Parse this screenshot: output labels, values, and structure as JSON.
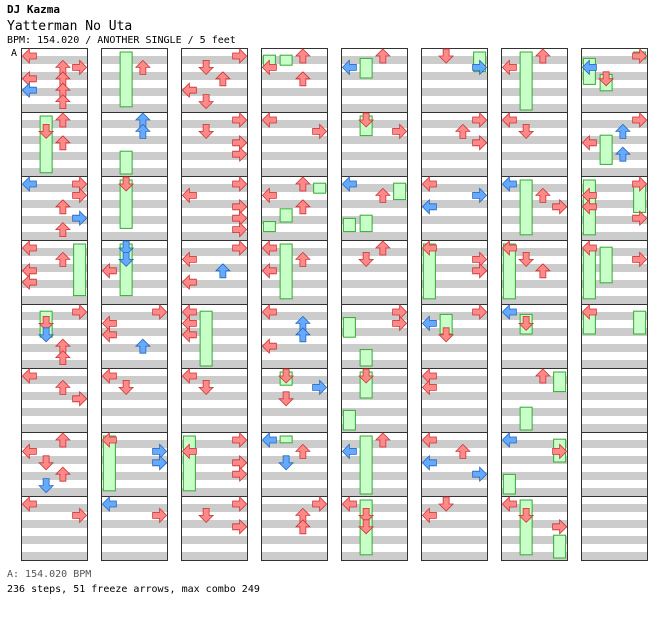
{
  "header": {
    "artist": "DJ Kazma",
    "title": "Yatterman No Uta",
    "meta": "BPM: 154.020 / ANOTHER SINGLE / 5 feet",
    "section_marker": "A"
  },
  "footer": {
    "bpm": "A: 154.020 BPM",
    "stats": "236 steps, 51 freeze arrows, max combo 249"
  },
  "colors": {
    "red_arrow": "#ff8888",
    "blue_arrow": "#66aaff",
    "freeze": "#c8ffc8",
    "freeze_border": "#33aa33",
    "stripe": "#cccccc"
  },
  "chart": {
    "columns": 8,
    "measures_per_column": 8,
    "lanes": [
      "left",
      "down",
      "up",
      "right"
    ],
    "measures": [
      [
        [
          0,
          "L",
          "r"
        ],
        [
          3,
          "R",
          "r"
        ],
        [
          6,
          "L",
          "r"
        ],
        [
          9,
          "L",
          "b"
        ],
        [
          3,
          "U",
          "r"
        ],
        [
          6,
          "U",
          "r"
        ],
        [
          9,
          "U",
          "r"
        ],
        [
          12,
          "U",
          "r"
        ]
      ],
      [
        [
          0,
          "U",
          "r"
        ],
        [
          3,
          "D",
          "r"
        ],
        [
          6,
          "U",
          "r"
        ]
      ],
      [
        [
          0,
          "L",
          "b"
        ],
        [
          0,
          "R",
          "r"
        ],
        [
          3,
          "R",
          "r"
        ],
        [
          6,
          "U",
          "r"
        ],
        [
          9,
          "R",
          "b"
        ],
        [
          12,
          "U",
          "r"
        ]
      ],
      [
        [
          0,
          "L",
          "r"
        ],
        [
          3,
          "U",
          "r"
        ],
        [
          6,
          "L",
          "r"
        ],
        [
          9,
          "L",
          "r"
        ]
      ],
      [
        [
          0,
          "R",
          "r"
        ],
        [
          3,
          "D",
          "r"
        ],
        [
          6,
          "D",
          "b"
        ],
        [
          9,
          "U",
          "r"
        ],
        [
          12,
          "U",
          "r"
        ]
      ],
      [
        [
          0,
          "L",
          "r"
        ],
        [
          3,
          "U",
          "r"
        ],
        [
          6,
          "R",
          "r"
        ]
      ],
      [
        [
          0,
          "U",
          "r"
        ],
        [
          3,
          "L",
          "r"
        ],
        [
          6,
          "D",
          "r"
        ],
        [
          9,
          "U",
          "r"
        ],
        [
          12,
          "D",
          "b"
        ]
      ],
      [
        [
          0,
          "L",
          "r"
        ],
        [
          3,
          "R",
          "r"
        ]
      ],
      [
        [
          3,
          "U",
          "r"
        ]
      ],
      [
        [
          0,
          "U",
          "b"
        ],
        [
          3,
          "U",
          "b"
        ]
      ],
      [
        [
          0,
          "D",
          "r"
        ]
      ],
      [
        [
          0,
          "D",
          "b"
        ],
        [
          3,
          "D",
          "b"
        ],
        [
          6,
          "L",
          "r"
        ]
      ],
      [
        [
          0,
          "R",
          "r"
        ],
        [
          3,
          "L",
          "r"
        ],
        [
          6,
          "L",
          "r"
        ],
        [
          9,
          "U",
          "b"
        ]
      ],
      [
        [
          0,
          "L",
          "r"
        ],
        [
          3,
          "D",
          "r"
        ]
      ],
      [
        [
          0,
          "L",
          "r"
        ],
        [
          3,
          "R",
          "b"
        ],
        [
          6,
          "R",
          "b"
        ]
      ],
      [
        [
          0,
          "L",
          "b"
        ],
        [
          3,
          "R",
          "r"
        ]
      ],
      [
        [
          0,
          "R",
          "r"
        ],
        [
          3,
          "D",
          "r"
        ],
        [
          6,
          "U",
          "r"
        ],
        [
          9,
          "L",
          "r"
        ],
        [
          12,
          "D",
          "r"
        ]
      ],
      [
        [
          0,
          "R",
          "r"
        ],
        [
          3,
          "D",
          "r"
        ],
        [
          6,
          "R",
          "r"
        ],
        [
          9,
          "R",
          "r"
        ]
      ],
      [
        [
          0,
          "R",
          "r"
        ],
        [
          3,
          "L",
          "r"
        ],
        [
          6,
          "R",
          "r"
        ],
        [
          9,
          "R",
          "r"
        ],
        [
          12,
          "R",
          "r"
        ]
      ],
      [
        [
          0,
          "R",
          "r"
        ],
        [
          3,
          "L",
          "r"
        ],
        [
          6,
          "U",
          "b"
        ],
        [
          9,
          "L",
          "r"
        ]
      ],
      [
        [
          0,
          "L",
          "r"
        ],
        [
          3,
          "L",
          "r"
        ],
        [
          6,
          "L",
          "r"
        ]
      ],
      [
        [
          0,
          "L",
          "r"
        ],
        [
          3,
          "D",
          "r"
        ]
      ],
      [
        [
          0,
          "R",
          "r"
        ],
        [
          3,
          "L",
          "r"
        ],
        [
          6,
          "R",
          "r"
        ],
        [
          9,
          "R",
          "r"
        ]
      ],
      [
        [
          0,
          "R",
          "r"
        ],
        [
          3,
          "D",
          "r"
        ],
        [
          6,
          "R",
          "r"
        ]
      ],
      [
        [
          0,
          "U",
          "r"
        ],
        [
          3,
          "L",
          "r"
        ],
        [
          6,
          "U",
          "r"
        ]
      ],
      [
        [
          0,
          "L",
          "r"
        ],
        [
          3,
          "R",
          "r"
        ]
      ],
      [
        [
          0,
          "U",
          "r"
        ],
        [
          3,
          "L",
          "r"
        ],
        [
          6,
          "U",
          "r"
        ]
      ],
      [
        [
          0,
          "L",
          "r"
        ],
        [
          3,
          "U",
          "r"
        ],
        [
          6,
          "L",
          "r"
        ]
      ],
      [
        [
          0,
          "L",
          "r"
        ],
        [
          3,
          "U",
          "b"
        ],
        [
          6,
          "U",
          "b"
        ],
        [
          9,
          "L",
          "r"
        ]
      ],
      [
        [
          0,
          "D",
          "r"
        ],
        [
          3,
          "R",
          "b"
        ],
        [
          6,
          "D",
          "r"
        ]
      ],
      [
        [
          0,
          "L",
          "b"
        ],
        [
          3,
          "U",
          "r"
        ],
        [
          6,
          "D",
          "b"
        ]
      ],
      [
        [
          0,
          "R",
          "r"
        ],
        [
          3,
          "U",
          "r"
        ],
        [
          6,
          "U",
          "r"
        ]
      ],
      [
        [
          0,
          "U",
          "r"
        ],
        [
          3,
          "L",
          "b"
        ]
      ],
      [
        [
          0,
          "D",
          "r"
        ],
        [
          3,
          "R",
          "r"
        ]
      ],
      [
        [
          0,
          "L",
          "b"
        ],
        [
          3,
          "U",
          "r"
        ]
      ],
      [
        [
          0,
          "U",
          "r"
        ],
        [
          3,
          "D",
          "r"
        ]
      ],
      [
        [
          0,
          "R",
          "r"
        ],
        [
          3,
          "R",
          "r"
        ]
      ],
      [
        [
          0,
          "D",
          "r"
        ]
      ],
      [
        [
          0,
          "U",
          "r"
        ],
        [
          3,
          "L",
          "b"
        ]
      ],
      [
        [
          0,
          "L",
          "r"
        ],
        [
          3,
          "D",
          "r"
        ],
        [
          6,
          "D",
          "r"
        ]
      ],
      [
        [
          0,
          "D",
          "r"
        ],
        [
          3,
          "R",
          "b"
        ]
      ],
      [
        [
          0,
          "R",
          "r"
        ],
        [
          3,
          "U",
          "r"
        ],
        [
          6,
          "R",
          "r"
        ]
      ],
      [
        [
          0,
          "L",
          "r"
        ],
        [
          3,
          "R",
          "b"
        ],
        [
          6,
          "L",
          "b"
        ]
      ],
      [
        [
          0,
          "L",
          "r"
        ],
        [
          3,
          "R",
          "r"
        ],
        [
          6,
          "R",
          "r"
        ]
      ],
      [
        [
          0,
          "R",
          "r"
        ],
        [
          3,
          "L",
          "b"
        ],
        [
          6,
          "D",
          "r"
        ]
      ],
      [
        [
          0,
          "L",
          "r"
        ],
        [
          3,
          "L",
          "r"
        ]
      ],
      [
        [
          0,
          "L",
          "r"
        ],
        [
          3,
          "U",
          "r"
        ],
        [
          6,
          "L",
          "b"
        ],
        [
          9,
          "R",
          "b"
        ]
      ],
      [
        [
          0,
          "D",
          "r"
        ],
        [
          3,
          "L",
          "r"
        ]
      ],
      [
        [
          0,
          "U",
          "r"
        ],
        [
          3,
          "L",
          "r"
        ]
      ],
      [
        [
          0,
          "L",
          "r"
        ],
        [
          3,
          "D",
          "r"
        ]
      ],
      [
        [
          0,
          "L",
          "b"
        ],
        [
          3,
          "U",
          "r"
        ],
        [
          6,
          "R",
          "r"
        ]
      ],
      [
        [
          0,
          "L",
          "r"
        ],
        [
          3,
          "D",
          "r"
        ],
        [
          6,
          "U",
          "r"
        ]
      ],
      [
        [
          0,
          "L",
          "b"
        ],
        [
          3,
          "D",
          "r"
        ]
      ],
      [
        [
          0,
          "U",
          "r"
        ]
      ],
      [
        [
          0,
          "L",
          "b"
        ],
        [
          3,
          "R",
          "r"
        ]
      ],
      [
        [
          0,
          "L",
          "r"
        ],
        [
          3,
          "D",
          "r"
        ],
        [
          6,
          "R",
          "r"
        ]
      ],
      [
        [
          0,
          "R",
          "r"
        ],
        [
          3,
          "L",
          "b"
        ],
        [
          6,
          "D",
          "r"
        ]
      ],
      [
        [
          0,
          "R",
          "r"
        ],
        [
          3,
          "U",
          "b"
        ],
        [
          6,
          "L",
          "r"
        ],
        [
          9,
          "U",
          "b"
        ]
      ],
      [
        [
          0,
          "R",
          "r"
        ],
        [
          3,
          "L",
          "r"
        ],
        [
          6,
          "L",
          "r"
        ],
        [
          9,
          "R",
          "r"
        ]
      ],
      [
        [
          0,
          "L",
          "r"
        ],
        [
          3,
          "R",
          "r"
        ]
      ],
      [
        [
          0,
          "L",
          "r"
        ]
      ],
      [],
      [],
      []
    ],
    "freezes": [
      [
        0,
        1,
        "D",
        0.0,
        0.98
      ],
      [
        0,
        3,
        "R",
        0.0,
        0.9
      ],
      [
        0,
        4,
        "D",
        0.05,
        0.55
      ],
      [
        1,
        0,
        "D",
        0.0,
        0.95
      ],
      [
        1,
        1,
        "D",
        0.55,
        1.0
      ],
      [
        1,
        2,
        "D",
        0.0,
        0.85
      ],
      [
        1,
        3,
        "D",
        0.0,
        0.9
      ],
      [
        1,
        6,
        "L",
        0.0,
        0.95
      ],
      [
        2,
        4,
        "D",
        0.05,
        1.0
      ],
      [
        2,
        6,
        "L",
        0.0,
        0.95
      ],
      [
        3,
        0,
        "L",
        0.05,
        0.3
      ],
      [
        3,
        0,
        "D",
        0.05,
        0.3
      ],
      [
        3,
        2,
        "R",
        0.05,
        0.3
      ],
      [
        3,
        2,
        "D",
        0.45,
        0.75
      ],
      [
        3,
        2,
        "L",
        0.65,
        0.9
      ],
      [
        3,
        3,
        "D",
        0.0,
        0.95
      ],
      [
        3,
        5,
        "D",
        0.0,
        0.3
      ],
      [
        3,
        6,
        "D",
        0.0,
        0.2
      ],
      [
        4,
        0,
        "D",
        0.1,
        0.5
      ],
      [
        4,
        1,
        "D",
        0.0,
        0.4
      ],
      [
        4,
        2,
        "R",
        0.05,
        0.4
      ],
      [
        4,
        2,
        "D",
        0.55,
        0.9
      ],
      [
        4,
        2,
        "L",
        0.6,
        0.9
      ],
      [
        4,
        4,
        "L",
        0.15,
        0.55
      ],
      [
        4,
        4,
        "D",
        0.65,
        1.0
      ],
      [
        4,
        5,
        "D",
        0.0,
        0.5
      ],
      [
        4,
        5,
        "L",
        0.6,
        1.0
      ],
      [
        4,
        6,
        "D",
        0.0,
        1.0
      ],
      [
        4,
        7,
        "D",
        0.0,
        0.95
      ],
      [
        5,
        0,
        "R",
        0.0,
        0.4
      ],
      [
        5,
        3,
        "L",
        0.0,
        0.95
      ],
      [
        5,
        4,
        "D",
        0.1,
        0.5
      ],
      [
        6,
        0,
        "D",
        0.0,
        1.0
      ],
      [
        6,
        2,
        "D",
        0.0,
        0.95
      ],
      [
        6,
        3,
        "L",
        0.0,
        0.95
      ],
      [
        6,
        4,
        "D",
        0.1,
        0.5
      ],
      [
        6,
        5,
        "R",
        0.0,
        0.4
      ],
      [
        6,
        5,
        "D",
        0.55,
        1.0
      ],
      [
        6,
        6,
        "L",
        0.6,
        1.0
      ],
      [
        6,
        6,
        "R",
        0.05,
        0.5
      ],
      [
        6,
        7,
        "D",
        0.0,
        0.95
      ],
      [
        6,
        7,
        "R",
        0.55,
        1.0
      ],
      [
        7,
        0,
        "R",
        0.0,
        0.2
      ],
      [
        7,
        0,
        "L",
        0.1,
        0.6
      ],
      [
        7,
        0,
        "D",
        0.35,
        0.7
      ],
      [
        7,
        1,
        "D",
        0.3,
        0.85
      ],
      [
        7,
        2,
        "L",
        0.0,
        0.95
      ],
      [
        7,
        2,
        "R",
        0.05,
        0.6
      ],
      [
        7,
        3,
        "L",
        0.05,
        0.95
      ],
      [
        7,
        3,
        "D",
        0.05,
        0.7
      ],
      [
        7,
        4,
        "L",
        0.05,
        0.5
      ],
      [
        7,
        4,
        "R",
        0.05,
        0.5
      ]
    ]
  }
}
